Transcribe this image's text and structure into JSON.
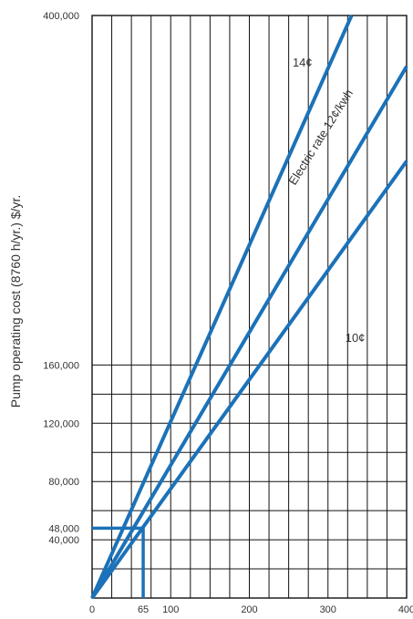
{
  "chart_data": {
    "type": "line",
    "title": "",
    "xlabel": "",
    "ylabel": "Pump operating cost (8760 h/yr.) $/yr.",
    "xlim": [
      0,
      400
    ],
    "ylim": [
      0,
      400000
    ],
    "grid": true,
    "x_ticks": [
      {
        "value": 0,
        "label": "0"
      },
      {
        "value": 65,
        "label": "65"
      },
      {
        "value": 100,
        "label": "100"
      },
      {
        "value": 200,
        "label": "200"
      },
      {
        "value": 300,
        "label": "300"
      },
      {
        "value": 400,
        "label": "400"
      }
    ],
    "y_ticks": [
      {
        "value": 40000,
        "label": "40,000"
      },
      {
        "value": 48000,
        "label": "48,000"
      },
      {
        "value": 80000,
        "label": "80,000"
      },
      {
        "value": 120000,
        "label": "120,000"
      },
      {
        "value": 160000,
        "label": "160,000"
      },
      {
        "value": 400000,
        "label": "400,000"
      }
    ],
    "x_grid_step": 25,
    "y_grid_values": [
      20000,
      40000,
      60000,
      80000,
      100000,
      120000,
      140000,
      160000,
      400000
    ],
    "series": [
      {
        "name": "14¢",
        "color": "#1b72b8",
        "x": [
          0,
          330
        ],
        "y": [
          0,
          400000
        ]
      },
      {
        "name": "12¢",
        "color": "#1b72b8",
        "x": [
          0,
          400
        ],
        "y": [
          0,
          365000
        ]
      },
      {
        "name": "10¢",
        "color": "#1b72b8",
        "x": [
          0,
          400
        ],
        "y": [
          0,
          300000
        ]
      }
    ],
    "reference": {
      "x": 65,
      "y": 48000,
      "color": "#1b72b8"
    },
    "annotations": [
      {
        "text": "14¢",
        "x": 255,
        "y": 365000,
        "rotate": 0
      },
      {
        "text": "Electric rate 12¢/kwh",
        "x": 258,
        "y": 283000,
        "rotate": -58
      },
      {
        "text": "10¢",
        "x": 322,
        "y": 176000,
        "rotate": 0
      }
    ]
  }
}
